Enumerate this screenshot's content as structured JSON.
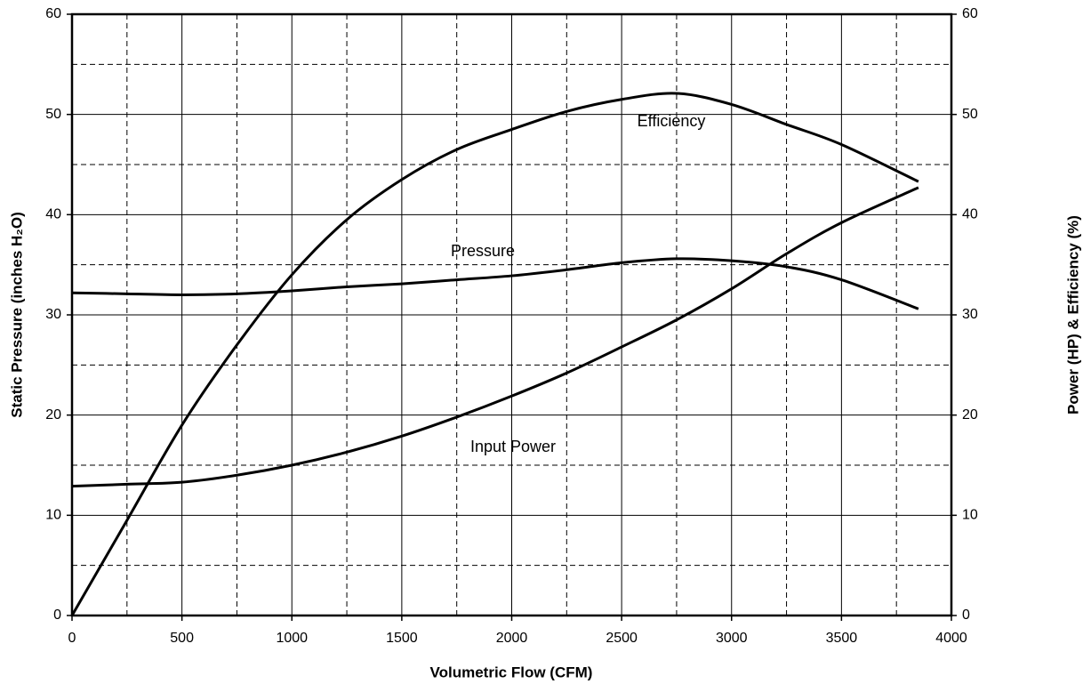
{
  "chart_data": {
    "type": "line",
    "xlabel": "Volumetric Flow (CFM)",
    "ylabel": "Static Pressure (inches H₂O)",
    "y2label": "Power (HP) & Efficiency (%)",
    "x": [
      0,
      250,
      500,
      750,
      1000,
      1250,
      1500,
      1750,
      2000,
      2250,
      2500,
      2750,
      3000,
      3250,
      3500,
      3850
    ],
    "series": [
      {
        "name": "Pressure",
        "color": "#000000",
        "values": [
          32.2,
          32.1,
          32.0,
          32.1,
          32.4,
          32.8,
          33.1,
          33.5,
          33.9,
          34.5,
          35.2,
          35.6,
          35.4,
          34.8,
          33.5,
          30.6
        ]
      },
      {
        "name": "Efficiency",
        "color": "#000000",
        "axis": "y2",
        "values": [
          0,
          9.5,
          19,
          27,
          34,
          39.5,
          43.5,
          46.5,
          48.5,
          50.3,
          51.5,
          52.1,
          51,
          49,
          47,
          43.3
        ]
      },
      {
        "name": "Input Power",
        "color": "#000000",
        "axis": "y2",
        "values": [
          12.9,
          13.1,
          13.3,
          14,
          15,
          16.3,
          17.9,
          19.8,
          21.9,
          24.2,
          26.8,
          29.5,
          32.6,
          36.1,
          39.2,
          42.7
        ]
      }
    ],
    "xlim": [
      0,
      4000
    ],
    "xticks": [
      0,
      500,
      1000,
      1500,
      2000,
      2500,
      3000,
      3500,
      4000
    ],
    "minor_xticks": [
      250,
      750,
      1250,
      1750,
      2250,
      2750,
      3250,
      3750
    ],
    "ylim": [
      0,
      60
    ],
    "yticks": [
      0,
      10,
      20,
      30,
      40,
      50,
      60
    ],
    "minor_yticks": [
      5,
      15,
      25,
      35,
      45,
      55
    ],
    "y2lim": [
      0,
      60
    ],
    "y2ticks": [
      0,
      10,
      20,
      30,
      40,
      50,
      60
    ],
    "grid": true
  }
}
